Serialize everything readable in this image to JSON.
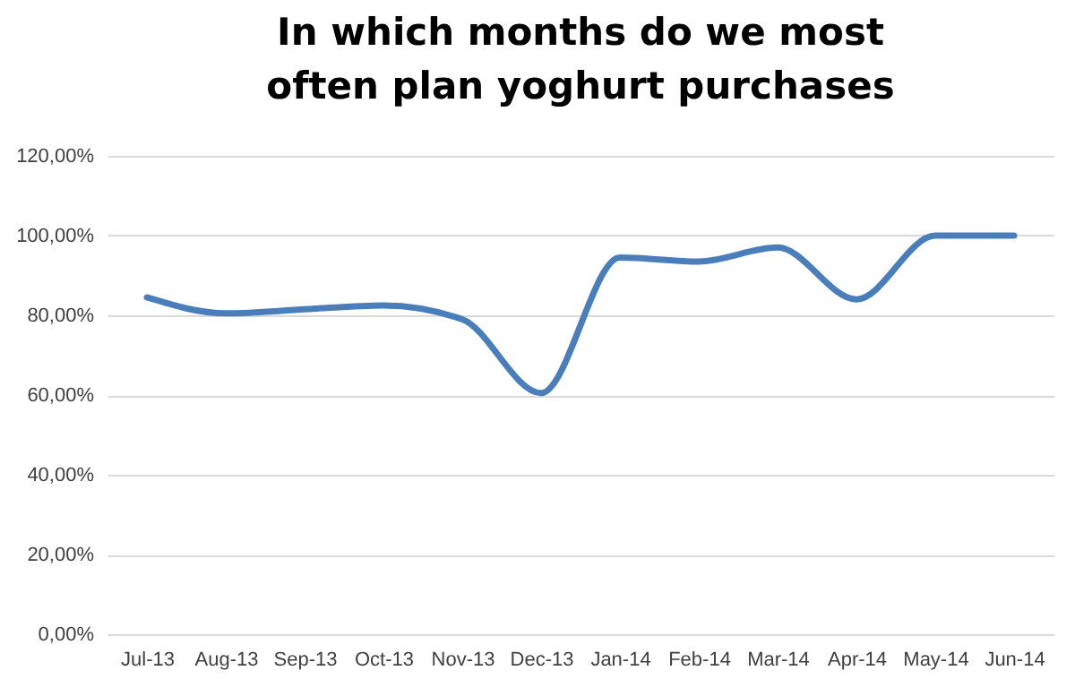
{
  "chart_data": {
    "type": "line",
    "title": "In which months do we most often plan yoghurt purchases",
    "categories": [
      "Jul-13",
      "Aug-13",
      "Sep-13",
      "Oct-13",
      "Nov-13",
      "Dec-13",
      "Jan-14",
      "Feb-14",
      "Mar-14",
      "Apr-14",
      "May-14",
      "Jun-14"
    ],
    "series": [
      {
        "color": "#4a7ebb",
        "values": [
          84.5,
          80.5,
          81.5,
          82.5,
          79,
          60.5,
          94.5,
          93.5,
          97,
          84,
          100,
          100
        ]
      }
    ],
    "ylim": [
      0,
      120
    ],
    "yticks": [
      {
        "value": 0,
        "label": "0,00%"
      },
      {
        "value": 20,
        "label": "20,00%"
      },
      {
        "value": 40,
        "label": "40,00%"
      },
      {
        "value": 60,
        "label": "60,00%"
      },
      {
        "value": 80,
        "label": "80,00%"
      },
      {
        "value": 100,
        "label": "100,00%"
      },
      {
        "value": 120,
        "label": "120,00%"
      }
    ],
    "grid": "y",
    "marker": "none",
    "line_style": "solid"
  }
}
